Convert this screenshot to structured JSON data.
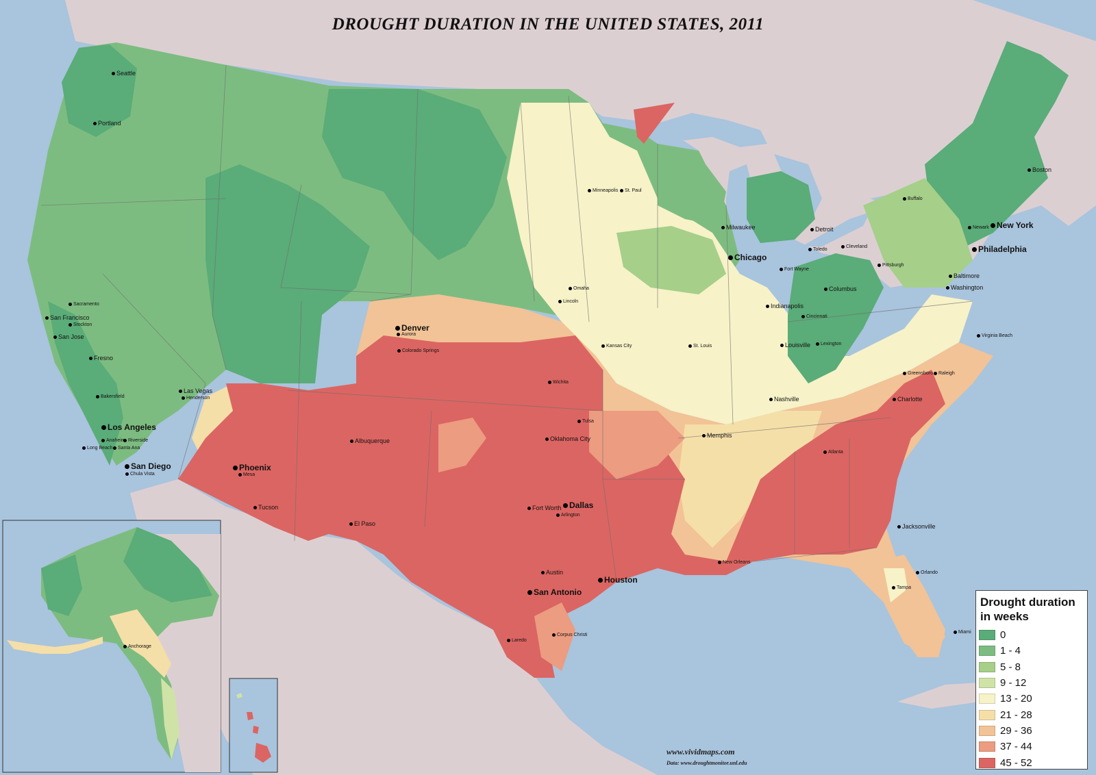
{
  "title": "DROUGHT DURATION IN THE UNITED STATES, 2011",
  "legend": {
    "title": "Drought duration in weeks",
    "classes": [
      {
        "label": "0",
        "color": "#5aac78"
      },
      {
        "label": "1 - 4",
        "color": "#7dbc80"
      },
      {
        "label": "5 - 8",
        "color": "#a6cf8a"
      },
      {
        "label": "9 - 12",
        "color": "#cfe3a6"
      },
      {
        "label": "13 - 20",
        "color": "#f7f2c8"
      },
      {
        "label": "21 - 28",
        "color": "#f5dfa8"
      },
      {
        "label": "29 - 36",
        "color": "#f2c396"
      },
      {
        "label": "37 - 44",
        "color": "#ec9c80"
      },
      {
        "label": "45 - 52",
        "color": "#db6562"
      }
    ]
  },
  "cities": [
    {
      "name": "Seattle"
    },
    {
      "name": "Portland"
    },
    {
      "name": "Sacramento"
    },
    {
      "name": "San Francisco"
    },
    {
      "name": "Stockton"
    },
    {
      "name": "San Jose"
    },
    {
      "name": "Fresno"
    },
    {
      "name": "Bakersfield"
    },
    {
      "name": "Las Vegas"
    },
    {
      "name": "Henderson"
    },
    {
      "name": "Los Angeles"
    },
    {
      "name": "Riverside"
    },
    {
      "name": "Anaheim"
    },
    {
      "name": "Long Beach"
    },
    {
      "name": "Santa Ana"
    },
    {
      "name": "San Diego"
    },
    {
      "name": "Chula Vista"
    },
    {
      "name": "Phoenix"
    },
    {
      "name": "Mesa"
    },
    {
      "name": "Tucson"
    },
    {
      "name": "Albuquerque"
    },
    {
      "name": "El Paso"
    },
    {
      "name": "Denver"
    },
    {
      "name": "Aurora"
    },
    {
      "name": "Colorado Springs"
    },
    {
      "name": "Wichita"
    },
    {
      "name": "Tulsa"
    },
    {
      "name": "Oklahoma City"
    },
    {
      "name": "Fort Worth"
    },
    {
      "name": "Dallas"
    },
    {
      "name": "Arlington"
    },
    {
      "name": "Austin"
    },
    {
      "name": "San Antonio"
    },
    {
      "name": "Houston"
    },
    {
      "name": "Laredo"
    },
    {
      "name": "Corpus Christi"
    },
    {
      "name": "Omaha"
    },
    {
      "name": "Lincoln"
    },
    {
      "name": "Kansas City"
    },
    {
      "name": "Minneapolis"
    },
    {
      "name": "St. Paul"
    },
    {
      "name": "Milwaukee"
    },
    {
      "name": "Chicago"
    },
    {
      "name": "Detroit"
    },
    {
      "name": "Toledo"
    },
    {
      "name": "Fort Wayne"
    },
    {
      "name": "Indianapolis"
    },
    {
      "name": "Cincinnati"
    },
    {
      "name": "Columbus"
    },
    {
      "name": "Cleveland"
    },
    {
      "name": "Pittsburgh"
    },
    {
      "name": "Louisville"
    },
    {
      "name": "Lexington"
    },
    {
      "name": "St. Louis"
    },
    {
      "name": "Nashville"
    },
    {
      "name": "Memphis"
    },
    {
      "name": "New Orleans"
    },
    {
      "name": "Atlanta"
    },
    {
      "name": "Charlotte"
    },
    {
      "name": "Greensboro"
    },
    {
      "name": "Raleigh"
    },
    {
      "name": "Virginia Beach"
    },
    {
      "name": "Washington"
    },
    {
      "name": "Baltimore"
    },
    {
      "name": "Philadelphia"
    },
    {
      "name": "New York"
    },
    {
      "name": "Newark"
    },
    {
      "name": "Boston"
    },
    {
      "name": "Buffalo"
    },
    {
      "name": "Jacksonville"
    },
    {
      "name": "Orlando"
    },
    {
      "name": "Tampa"
    },
    {
      "name": "Miami"
    },
    {
      "name": "Anchorage"
    }
  ],
  "credit": "www.vividmaps.com",
  "source": "Data: www.droughtmonitor.unl.edu"
}
